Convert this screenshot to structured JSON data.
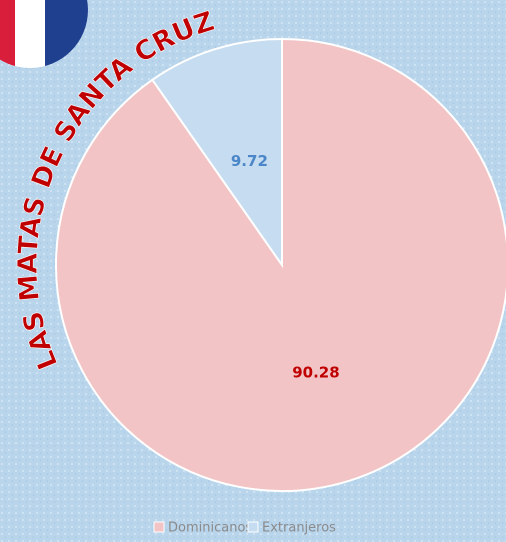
{
  "chart_data": {
    "type": "pie",
    "title": "LAS MATAS DE SANTA CRUZ",
    "categories": [
      "Dominicanos",
      "Extranjeros"
    ],
    "values": [
      90.28,
      9.72
    ],
    "colors": [
      "#f2c4c6",
      "#c6dcf0"
    ],
    "label_colors": [
      "#c00000",
      "#4a86c8"
    ]
  }
}
